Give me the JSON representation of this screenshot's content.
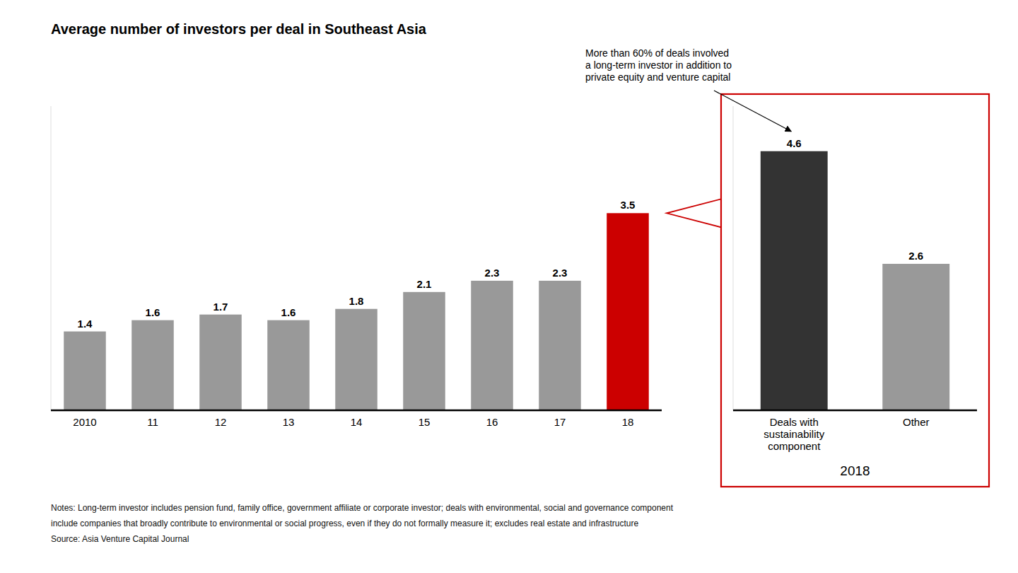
{
  "chart_data": [
    {
      "type": "bar",
      "title": "Average number of investors per deal in Southeast Asia",
      "categories": [
        "2010",
        "11",
        "12",
        "13",
        "14",
        "15",
        "16",
        "17",
        "18"
      ],
      "values": [
        1.4,
        1.6,
        1.7,
        1.6,
        1.8,
        2.1,
        2.3,
        2.3,
        3.5
      ],
      "colors": [
        "#999999",
        "#999999",
        "#999999",
        "#999999",
        "#999999",
        "#999999",
        "#999999",
        "#999999",
        "#cc0000"
      ],
      "ylim": [
        0,
        5.4
      ],
      "data_labels": true,
      "tick_labels": "x",
      "grid": false,
      "notes": [
        "Notes: Long-term investor includes pension fund, family office, government affiliate or corporate investor; deals with environmental, social and governance component",
        "include companies that broadly contribute to environmental or social progress, even if they do not formally measure it; excludes real estate and infrastructure"
      ],
      "source": "Source: Asia Venture Capital Journal"
    },
    {
      "type": "bar",
      "categories": [
        "Deals with\nsustainability\ncomponent",
        "Other"
      ],
      "values": [
        4.6,
        2.6
      ],
      "colors": [
        "#333333",
        "#999999"
      ],
      "xlabel": "2018",
      "ylim": [
        0,
        5.4
      ],
      "data_labels": true,
      "tick_labels": "x",
      "grid": false,
      "annotation": "More than 60% of deals involved\na long-term investor in addition to\nprivate equity and venture capital"
    }
  ]
}
